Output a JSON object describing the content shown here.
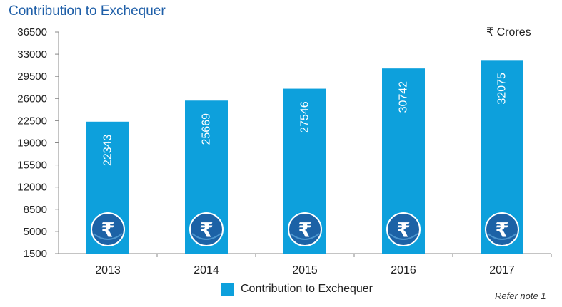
{
  "title": "Contribution to Exchequer",
  "unit_label": "₹ Crores",
  "note": "Refer note 1",
  "colors": {
    "bar": "#0da0dc",
    "icon_circle": "#1c62a6",
    "title": "#1f5fa8",
    "axis": "#888888"
  },
  "icon": "rupee-icon",
  "chart_data": {
    "type": "bar",
    "title": "Contribution to Exchequer",
    "categories": [
      "2013",
      "2014",
      "2015",
      "2016",
      "2017"
    ],
    "series": [
      {
        "name": "Contribution to Exchequer",
        "values": [
          22343,
          25669,
          27546,
          30742,
          32075
        ]
      }
    ],
    "ylim": [
      1500,
      36500
    ],
    "yticks": [
      "1500",
      "5000",
      "8500",
      "12000",
      "15500",
      "19000",
      "22500",
      "26000",
      "29500",
      "33000",
      "36500"
    ],
    "data_labels": [
      "22343",
      "25669",
      "27546",
      "30742",
      "32075"
    ],
    "grid": false,
    "legend": "bottom-center"
  }
}
